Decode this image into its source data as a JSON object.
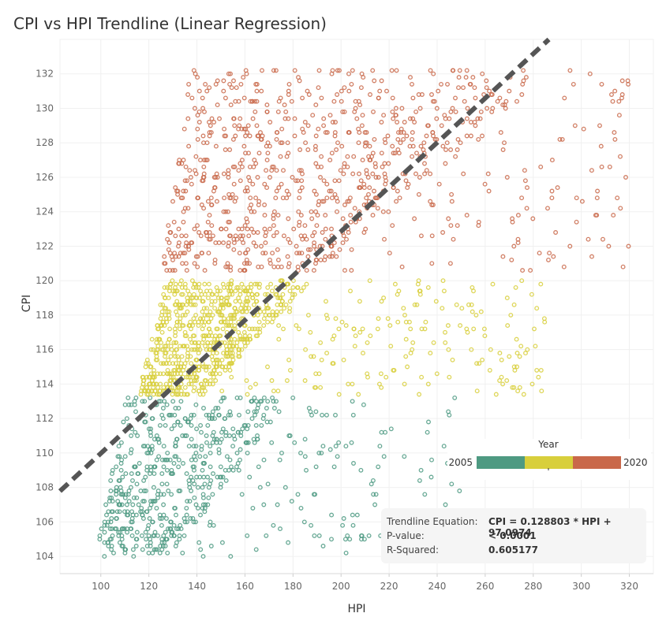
{
  "chart_data": {
    "type": "scatter",
    "title": "CPI vs HPI Trendline (Linear Regression)",
    "xlabel": "HPI",
    "ylabel": "CPI",
    "xlim": [
      83,
      330
    ],
    "ylim": [
      103,
      134
    ],
    "x_ticks": [
      100,
      120,
      140,
      160,
      180,
      200,
      220,
      240,
      260,
      280,
      300,
      320
    ],
    "y_ticks": [
      104,
      106,
      108,
      110,
      112,
      114,
      116,
      118,
      120,
      122,
      124,
      126,
      128,
      130,
      132
    ],
    "grid": true,
    "legend": {
      "title": "Year",
      "min_label": "2005",
      "max_label": "2020",
      "placement": "bottom-right",
      "colors": [
        "#4e9a82",
        "#d8cf3c",
        "#c9684a"
      ]
    },
    "color_scale": {
      "low": "#4e9a82",
      "mid": "#d8cf3c",
      "high": "#c9684a"
    },
    "series": [
      {
        "color": "#4e9a82",
        "cpi_range": [
          104,
          113.2
        ],
        "hpi_core": [
          98,
          160
        ],
        "hpi_spread": [
          98,
          250
        ]
      },
      {
        "color": "#d8cf3c",
        "cpi_range": [
          113.3,
          120
        ],
        "hpi_core": [
          115,
          170
        ],
        "hpi_spread": [
          115,
          285
        ]
      },
      {
        "color": "#c9684a",
        "cpi_range": [
          120.5,
          132.3
        ],
        "hpi_core": [
          125,
          260
        ],
        "hpi_spread": [
          125,
          320
        ]
      }
    ],
    "trendline": {
      "slope": 0.128803,
      "intercept": 97.0974,
      "color": "#555555",
      "style": "dashed"
    },
    "annotation": {
      "equation_label": "Trendline Equation:",
      "equation_value": "CPI = 0.128803 * HPI + 97.0974",
      "pvalue_label": "P-value:",
      "pvalue_value": "< 0.0001",
      "rsq_label": "R-Squared:",
      "rsq_value": "0.605177"
    }
  }
}
